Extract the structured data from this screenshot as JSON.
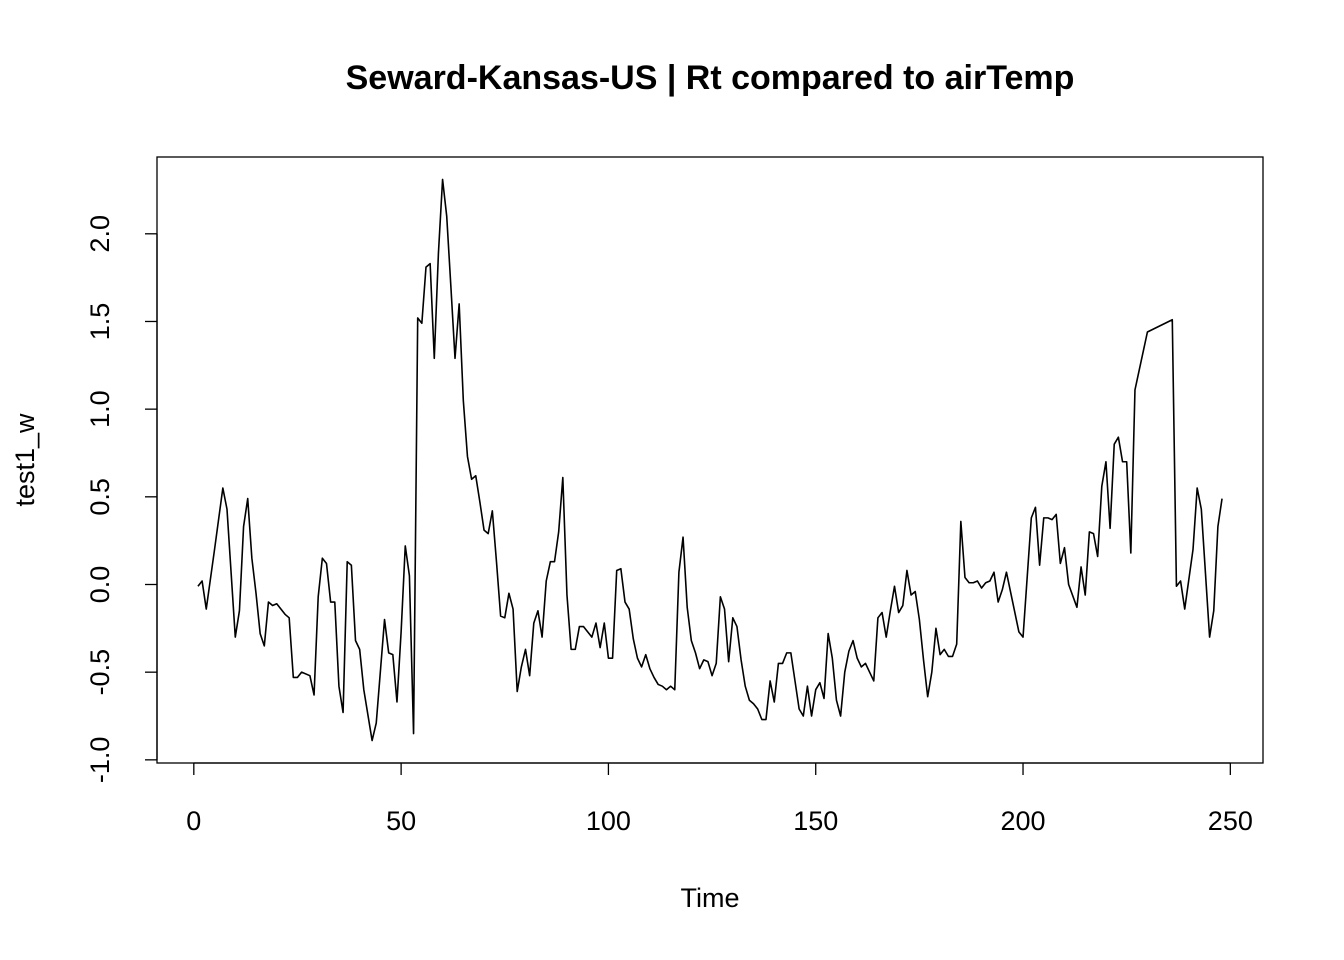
{
  "chart_data": {
    "type": "line",
    "title": "Seward-Kansas-US | Rt compared to airTemp",
    "x_label": "Time",
    "y_label": "test1_w",
    "x": [
      1,
      2,
      3,
      5,
      7,
      8,
      10,
      11,
      12,
      13,
      14,
      15,
      16,
      17,
      18,
      19,
      20,
      22,
      23,
      24,
      25,
      26,
      28,
      29,
      30,
      31,
      32,
      33,
      34,
      35,
      36,
      37,
      38,
      39,
      40,
      41,
      43,
      44,
      46,
      47,
      48,
      49,
      50,
      51,
      52,
      53,
      54,
      55,
      56,
      57,
      58,
      59,
      60,
      61,
      62,
      63,
      64,
      65,
      66,
      67,
      68,
      69,
      70,
      71,
      72,
      73,
      74,
      75,
      76,
      77,
      78,
      79,
      80,
      81,
      82,
      83,
      84,
      85,
      86,
      87,
      88,
      89,
      90,
      91,
      92,
      93,
      94,
      95,
      96,
      97,
      98,
      99,
      100,
      101,
      102,
      103,
      104,
      105,
      106,
      107,
      108,
      109,
      110,
      111,
      112,
      113,
      114,
      115,
      116,
      117,
      118,
      119,
      120,
      121,
      122,
      123,
      124,
      125,
      126,
      127,
      128,
      129,
      130,
      131,
      132,
      133,
      134,
      135,
      136,
      137,
      138,
      139,
      140,
      141,
      142,
      143,
      144,
      145,
      146,
      147,
      148,
      149,
      150,
      151,
      152,
      153,
      154,
      155,
      156,
      157,
      158,
      159,
      160,
      161,
      162,
      163,
      164,
      165,
      166,
      167,
      168,
      169,
      170,
      171,
      172,
      173,
      174,
      175,
      176,
      177,
      178,
      179,
      180,
      181,
      182,
      183,
      184,
      185,
      186,
      187,
      188,
      189,
      190,
      191,
      192,
      193,
      194,
      195,
      196,
      199,
      200,
      202,
      203,
      204,
      205,
      206,
      207,
      208,
      209,
      210,
      211,
      213,
      214,
      215,
      216,
      217,
      218,
      219,
      220,
      221,
      222,
      223,
      224,
      225,
      226,
      227,
      228,
      229,
      230,
      236,
      237,
      238,
      239,
      241,
      242,
      243,
      245,
      246,
      247,
      248
    ],
    "series": [
      {
        "name": "test1_w",
        "color": "#000000",
        "values": [
          -0.01,
          0.02,
          -0.14,
          0.2,
          0.55,
          0.43,
          -0.3,
          -0.15,
          0.33,
          0.49,
          0.15,
          -0.05,
          -0.28,
          -0.35,
          -0.1,
          -0.12,
          -0.11,
          -0.17,
          -0.19,
          -0.53,
          -0.53,
          -0.5,
          -0.52,
          -0.63,
          -0.07,
          0.15,
          0.12,
          -0.1,
          -0.1,
          -0.58,
          -0.73,
          0.13,
          0.11,
          -0.32,
          -0.37,
          -0.6,
          -0.89,
          -0.79,
          -0.2,
          -0.39,
          -0.4,
          -0.67,
          -0.27,
          0.22,
          0.05,
          -0.85,
          1.52,
          1.49,
          1.81,
          1.83,
          1.29,
          1.89,
          2.31,
          2.1,
          1.7,
          1.29,
          1.6,
          1.05,
          0.73,
          0.6,
          0.62,
          0.47,
          0.31,
          0.29,
          0.42,
          0.13,
          -0.18,
          -0.19,
          -0.05,
          -0.14,
          -0.61,
          -0.47,
          -0.37,
          -0.52,
          -0.22,
          -0.15,
          -0.3,
          0.02,
          0.13,
          0.13,
          0.3,
          0.61,
          -0.06,
          -0.37,
          -0.37,
          -0.24,
          -0.24,
          -0.27,
          -0.3,
          -0.22,
          -0.36,
          -0.22,
          -0.42,
          -0.42,
          0.08,
          0.09,
          -0.1,
          -0.14,
          -0.31,
          -0.42,
          -0.47,
          -0.4,
          -0.48,
          -0.53,
          -0.57,
          -0.58,
          -0.6,
          -0.58,
          -0.6,
          0.07,
          0.27,
          -0.13,
          -0.32,
          -0.39,
          -0.48,
          -0.43,
          -0.44,
          -0.52,
          -0.45,
          -0.07,
          -0.14,
          -0.44,
          -0.19,
          -0.24,
          -0.43,
          -0.58,
          -0.66,
          -0.68,
          -0.71,
          -0.77,
          -0.77,
          -0.55,
          -0.67,
          -0.45,
          -0.45,
          -0.39,
          -0.39,
          -0.55,
          -0.71,
          -0.75,
          -0.58,
          -0.75,
          -0.6,
          -0.56,
          -0.65,
          -0.28,
          -0.42,
          -0.66,
          -0.75,
          -0.5,
          -0.38,
          -0.32,
          -0.42,
          -0.47,
          -0.45,
          -0.5,
          -0.55,
          -0.19,
          -0.16,
          -0.3,
          -0.15,
          -0.01,
          -0.16,
          -0.12,
          0.08,
          -0.06,
          -0.04,
          -0.2,
          -0.43,
          -0.64,
          -0.5,
          -0.25,
          -0.4,
          -0.37,
          -0.41,
          -0.41,
          -0.34,
          0.36,
          0.04,
          0.01,
          0.01,
          0.02,
          -0.02,
          0.01,
          0.02,
          0.07,
          -0.1,
          -0.03,
          0.07,
          -0.27,
          -0.3,
          0.38,
          0.44,
          0.11,
          0.38,
          0.38,
          0.37,
          0.4,
          0.12,
          0.21,
          0.0,
          -0.13,
          0.1,
          -0.06,
          0.3,
          0.29,
          0.16,
          0.56,
          0.7,
          0.32,
          0.8,
          0.84,
          0.7,
          0.7,
          0.18,
          1.11,
          1.22,
          1.33,
          1.44,
          1.51,
          -0.01,
          0.02,
          -0.14,
          0.2,
          0.55,
          0.43,
          -0.3,
          -0.15,
          0.33,
          0.49
        ]
      }
    ],
    "xlim": [
      -8.88,
      257.88
    ],
    "ylim": [
      -1.018,
      2.438
    ],
    "xticks": [
      0,
      50,
      100,
      150,
      200,
      250
    ],
    "yticks": [
      {
        "value": -1.0,
        "label": "-1.0"
      },
      -0.5,
      {
        "value": 0.0,
        "label": "0.0"
      },
      0.5,
      {
        "value": 1.0,
        "label": "1.0"
      },
      1.5,
      {
        "value": 2.0,
        "label": "2.0"
      }
    ]
  }
}
